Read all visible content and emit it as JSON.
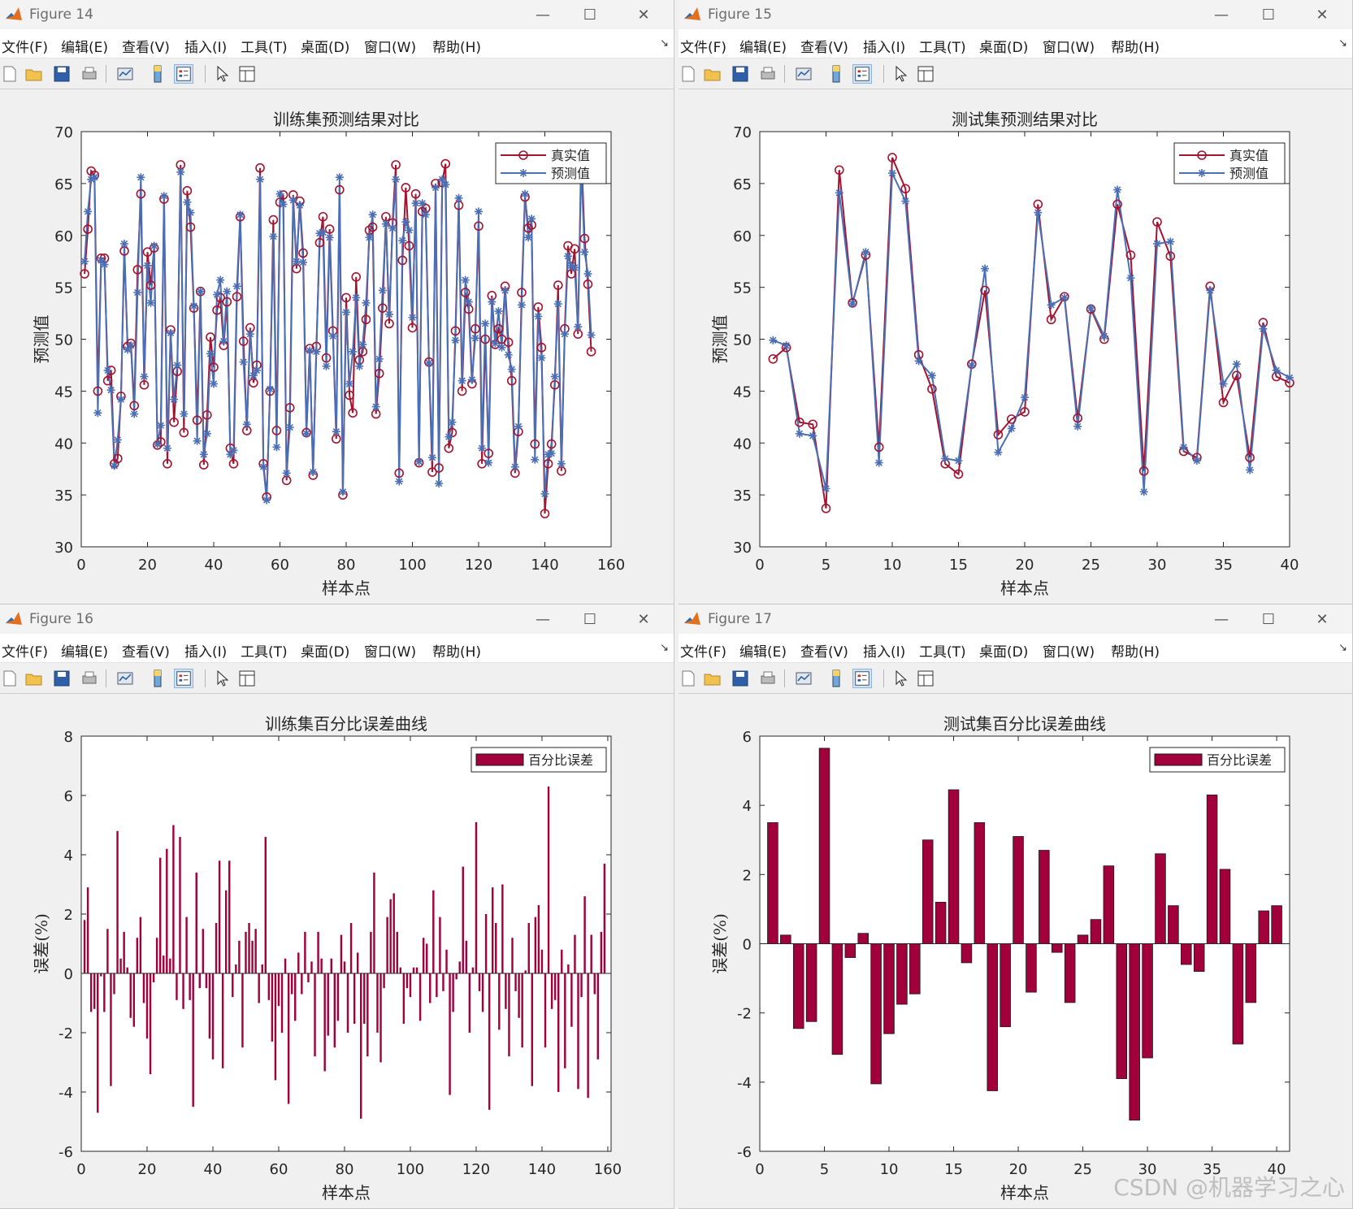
{
  "menu": [
    "文件(F)",
    "编辑(E)",
    "查看(V)",
    "插入(I)",
    "工具(T)",
    "桌面(D)",
    "窗口(W)",
    "帮助(H)"
  ],
  "window_controls": {
    "minimize": "—",
    "maximize": "☐",
    "close": "✕"
  },
  "menu_overflow": "↘",
  "colors": {
    "true": "#a2142f",
    "pred": "#4a6fb5",
    "bar": "#a2003a"
  },
  "toolbar": [
    "new-file-icon",
    "open-folder-icon",
    "save-icon",
    "print-icon",
    "link-plot-icon",
    "colorbar-icon",
    "legend-icon",
    "edit-plot-arrow-icon",
    "property-editor-icon"
  ],
  "watermark": "CSDN @机器学习之心",
  "figures": [
    {
      "title": "Figure 14",
      "chart_data": {
        "type": "line",
        "title": "训练集预测结果对比",
        "xlabel": "样本点",
        "ylabel": "预测值",
        "xlim": [
          0,
          160
        ],
        "ylim": [
          30,
          70
        ],
        "xticks": [
          0,
          20,
          40,
          60,
          80,
          100,
          120,
          140,
          160
        ],
        "yticks": [
          30,
          35,
          40,
          45,
          50,
          55,
          60,
          65,
          70
        ],
        "legend_position": "top-right",
        "series": [
          {
            "name": "真实值",
            "marker": "circle",
            "values": [
              56.3,
              60.6,
              66.2,
              65.8,
              45.0,
              57.8,
              57.8,
              46.0,
              47.0,
              38.0,
              38.5,
              44.5,
              58.5,
              49.3,
              49.6,
              43.6,
              56.7,
              64.0,
              45.6,
              58.4,
              55.2,
              58.8,
              39.8,
              40.1,
              63.5,
              38.0,
              50.9,
              42.0,
              46.9,
              66.8,
              41.0,
              64.3,
              60.8,
              53.0,
              42.2,
              54.6,
              37.9,
              42.7,
              50.2,
              47.3,
              52.8,
              54.0,
              49.4,
              53.6,
              39.5,
              38.0,
              54.1,
              61.8,
              49.8,
              41.2,
              51.1,
              45.8,
              47.5,
              66.5,
              38.0,
              34.8,
              45.0,
              61.5,
              41.2,
              63.2,
              63.9,
              36.4,
              43.4,
              63.9,
              56.8,
              63.3,
              58.3,
              41.0,
              49.1,
              36.9,
              49.3,
              59.3,
              61.8,
              48.2,
              60.6,
              50.8,
              40.4,
              64.4,
              35.0,
              54.0,
              44.6,
              42.9,
              56.0,
              48.0,
              48.8,
              51.9,
              60.5,
              60.8,
              42.8,
              46.7,
              53.0,
              61.8,
              51.5,
              61.2,
              66.8,
              37.1,
              57.6,
              64.6,
              59.0,
              51.1,
              64.0,
              38.1,
              62.3,
              62.6,
              47.8,
              37.2,
              65.0,
              37.6,
              65.1,
              66.9,
              39.5,
              41.0,
              50.8,
              62.9,
              45.0,
              54.5,
              52.9,
              45.7,
              51.0,
              60.9,
              38.0,
              50.0,
              39.0,
              54.2,
              49.5,
              51.0,
              50.0,
              55.1,
              49.7,
              46.0,
              37.1,
              41.1,
              54.5,
              63.7,
              60.7,
              61.0,
              39.9,
              53.1,
              49.2,
              33.2,
              38.0,
              39.9,
              45.6,
              55.2,
              37.3,
              51.0,
              59.0,
              56.3,
              58.7,
              50.5,
              68.2,
              59.7,
              55.3,
              48.8
            ]
          },
          {
            "name": "预测值",
            "marker": "asterisk",
            "values": [
              57.5,
              62.3,
              65.4,
              65.6,
              42.9,
              57.6,
              57.2,
              47.0,
              45.1,
              37.8,
              40.3,
              44.2,
              59.2,
              49.0,
              49.4,
              42.8,
              54.5,
              65.6,
              46.4,
              57.1,
              53.5,
              59.0,
              39.9,
              41.7,
              63.8,
              39.5,
              50.6,
              44.2,
              47.5,
              66.1,
              42.8,
              63.2,
              62.2,
              53.2,
              40.2,
              54.6,
              38.9,
              40.9,
              48.6,
              45.7,
              54.3,
              55.7,
              49.8,
              54.6,
              38.9,
              39.3,
              55.1,
              62.0,
              47.8,
              41.8,
              50.5,
              46.5,
              47.0,
              65.4,
              37.7,
              34.5,
              45.2,
              59.9,
              39.6,
              64.0,
              63.0,
              37.1,
              41.5,
              63.4,
              57.5,
              62.9,
              57.4,
              40.9,
              48.9,
              37.2,
              48.8,
              60.2,
              60.3,
              47.4,
              59.8,
              50.3,
              41.1,
              65.6,
              35.3,
              52.6,
              45.7,
              48.8,
              54.0,
              47.4,
              49.5,
              53.5,
              59.8,
              62.0,
              43.5,
              48.1,
              54.7,
              61.1,
              52.4,
              60.7,
              65.4,
              36.3,
              59.5,
              61.3,
              60.5,
              52.1,
              63.1,
              38.2,
              63.1,
              62.0,
              47.7,
              38.6,
              64.6,
              36.1,
              65.4,
              64.9,
              40.6,
              42.0,
              49.9,
              63.6,
              46.0,
              55.7,
              53.6,
              46.1,
              50.1,
              62.3,
              39.5,
              51.5,
              38.1,
              53.6,
              49.6,
              52.7,
              49.2,
              54.7,
              48.5,
              47.1,
              37.7,
              41.6,
              53.3,
              64.0,
              59.8,
              61.6,
              38.4,
              52.2,
              48.2,
              35.1,
              38.9,
              39.0,
              46.4,
              53.4,
              38.0,
              50.5,
              58.0,
              57.1,
              56.9,
              51.2,
              66.7,
              58.4,
              56.3,
              50.4
            ]
          }
        ]
      }
    },
    {
      "title": "Figure 15",
      "chart_data": {
        "type": "line",
        "title": "测试集预测结果对比",
        "xlabel": "样本点",
        "ylabel": "预测值",
        "xlim": [
          0,
          40
        ],
        "ylim": [
          30,
          70
        ],
        "xticks": [
          0,
          5,
          10,
          15,
          20,
          25,
          30,
          35,
          40
        ],
        "yticks": [
          30,
          35,
          40,
          45,
          50,
          55,
          60,
          65,
          70
        ],
        "legend_position": "top-right",
        "series": [
          {
            "name": "真实值",
            "marker": "circle",
            "values": [
              48.1,
              49.2,
              42.0,
              41.8,
              33.7,
              66.3,
              53.5,
              58.1,
              39.6,
              67.5,
              64.5,
              48.5,
              45.2,
              38.0,
              37.0,
              47.6,
              54.7,
              40.8,
              42.3,
              43.0,
              63.0,
              51.9,
              54.1,
              42.4,
              52.9,
              50.0,
              63.0,
              58.1,
              37.3,
              61.3,
              58.0,
              39.2,
              38.6,
              55.1,
              43.9,
              46.5,
              38.6,
              51.6,
              46.4,
              45.8
            ]
          },
          {
            "name": "预测值",
            "marker": "asterisk",
            "values": [
              49.9,
              49.4,
              40.9,
              40.7,
              35.6,
              64.1,
              53.4,
              58.4,
              38.1,
              66.0,
              63.3,
              47.9,
              46.5,
              38.5,
              38.3,
              47.5,
              56.8,
              39.1,
              41.4,
              44.4,
              62.2,
              53.3,
              54.0,
              41.6,
              53.0,
              50.3,
              64.4,
              55.9,
              35.3,
              59.2,
              59.4,
              39.6,
              38.3,
              54.7,
              45.7,
              47.6,
              37.4,
              51.0,
              47.0,
              46.3
            ]
          }
        ]
      }
    },
    {
      "title": "Figure 16",
      "chart_data": {
        "type": "bar",
        "title": "训练集百分比误差曲线",
        "xlabel": "样本点",
        "ylabel": "误差(%)",
        "xlim": [
          0,
          161
        ],
        "ylim": [
          -6,
          8
        ],
        "xticks": [
          0,
          20,
          40,
          60,
          80,
          100,
          120,
          140,
          160
        ],
        "yticks": [
          -6,
          -4,
          -2,
          0,
          2,
          4,
          6,
          8
        ],
        "legend_position": "top-right",
        "series": [
          {
            "name": "百分比误差",
            "values": [
              1.8,
              2.9,
              -1.3,
              -1.2,
              -4.7,
              -0.1,
              -1.3,
              1.5,
              -3.8,
              -0.7,
              4.8,
              0.5,
              1.4,
              0.2,
              -1.5,
              -1.8,
              1.2,
              1.9,
              -1.0,
              -2.2,
              -3.4,
              -0.3,
              1.2,
              3.9,
              0.6,
              4.2,
              0.5,
              5.0,
              -0.9,
              4.6,
              -1.2,
              1.9,
              -0.9,
              -4.5,
              3.4,
              -0.5,
              1.5,
              -0.5,
              -2.2,
              -2.9,
              1.7,
              3.8,
              -3.2,
              2.8,
              3.8,
              -0.8,
              0.3,
              1.1,
              -2.5,
              1.4,
              1.7,
              1.1,
              1.5,
              -1.0,
              0.3,
              4.6,
              -0.9,
              -2.3,
              -3.6,
              -1.1,
              -2.0,
              0.5,
              -4.4,
              -0.7,
              -1.6,
              0.7,
              -0.7,
              1.4,
              -0.3,
              0.4,
              -2.8,
              1.4,
              0.5,
              -3.3,
              -2.1,
              0.5,
              -2.5,
              -1.6,
              1.3,
              0.4,
              -2.0,
              1.7,
              -1.7,
              0.7,
              -4.9,
              -1.7,
              -2.8,
              1.4,
              3.4,
              -2.0,
              -3.0,
              -0.5,
              1.9,
              2.5,
              2.7,
              1.4,
              0.2,
              -1.7,
              -0.5,
              -0.8,
              0.2,
              0.2,
              -1.6,
              1.2,
              1.0,
              -1.0,
              2.8,
              -0.8,
              1.9,
              -0.6,
              0.8,
              -4.1,
              -1.3,
              -0.2,
              0.4,
              3.6,
              1.1,
              -2.0,
              0.2,
              5.1,
              -0.6,
              -1.3,
              2.0,
              -4.6,
              2.9,
              1.7,
              -1.9,
              3.0,
              -1.2,
              -2.8,
              1.2,
              -0.6,
              -1.5,
              -2.5,
              0.1,
              1.7,
              -3.8,
              1.9,
              2.3,
              0.8,
              -2.5,
              6.3,
              -1.2,
              -0.9,
              -4.0,
              0.8,
              -3.2,
              0.3,
              -1.8,
              1.3,
              -3.9,
              -0.8,
              2.6,
              -4.2,
              1.3,
              -0.7,
              -2.9,
              1.4,
              3.7
            ]
          }
        ]
      }
    },
    {
      "title": "Figure 17",
      "chart_data": {
        "type": "bar",
        "title": "测试集百分比误差曲线",
        "xlabel": "样本点",
        "ylabel": "误差(%)",
        "xlim": [
          0,
          41
        ],
        "ylim": [
          -6,
          6
        ],
        "xticks": [
          0,
          5,
          10,
          15,
          20,
          25,
          30,
          35,
          40
        ],
        "yticks": [
          -6,
          -4,
          -2,
          0,
          2,
          4,
          6
        ],
        "legend_position": "top-right",
        "series": [
          {
            "name": "百分比误差",
            "values": [
              3.5,
              0.25,
              -2.45,
              -2.25,
              5.65,
              -3.2,
              -0.4,
              0.3,
              -4.05,
              -2.6,
              -1.75,
              -1.45,
              3.0,
              1.2,
              4.45,
              -0.55,
              3.5,
              -4.25,
              -2.4,
              3.1,
              -1.4,
              2.7,
              -0.25,
              -1.7,
              0.25,
              0.7,
              2.25,
              -3.9,
              -5.1,
              -3.3,
              2.6,
              1.1,
              -0.6,
              -0.8,
              4.3,
              2.15,
              -2.9,
              -1.7,
              0.95,
              1.1
            ]
          }
        ]
      }
    }
  ]
}
